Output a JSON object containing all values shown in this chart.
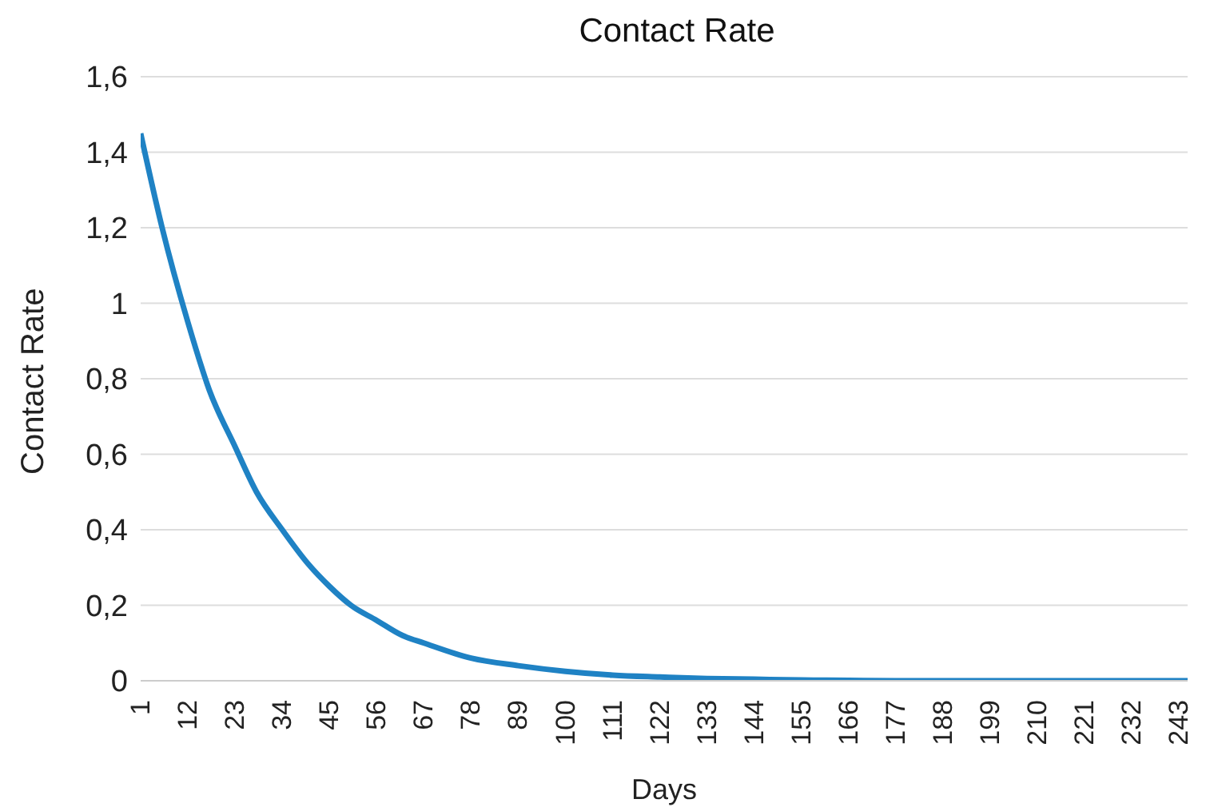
{
  "chart_data": {
    "type": "line",
    "title": "Contact Rate",
    "xlabel": "Days",
    "ylabel": "Contact Rate",
    "x": [
      1,
      6,
      12,
      17,
      23,
      28,
      34,
      40,
      45,
      50,
      56,
      62,
      67,
      78,
      89,
      100,
      111,
      122,
      133,
      144,
      155,
      166,
      177,
      188,
      199,
      210,
      221,
      232,
      243,
      245
    ],
    "series": [
      {
        "color": "#1f82c4",
        "values": [
          1.45,
          1.2,
          0.95,
          0.77,
          0.62,
          0.5,
          0.4,
          0.31,
          0.25,
          0.2,
          0.16,
          0.12,
          0.1,
          0.06,
          0.04,
          0.025,
          0.015,
          0.01,
          0.006,
          0.004,
          0.002,
          0.001,
          0,
          0,
          0,
          0,
          0,
          0,
          0,
          0
        ]
      }
    ],
    "xlim": [
      1,
      245
    ],
    "xticks": [
      1,
      12,
      23,
      34,
      45,
      56,
      67,
      78,
      89,
      100,
      111,
      122,
      133,
      144,
      155,
      166,
      177,
      188,
      199,
      210,
      221,
      232,
      243
    ],
    "ylim": [
      0,
      1.6
    ],
    "yticks": [
      0,
      {
        "value": 0.2,
        "label": "0,2"
      },
      {
        "value": 0.4,
        "label": "0,4"
      },
      {
        "value": 0.6,
        "label": "0,6"
      },
      {
        "value": 0.8,
        "label": "0,8"
      },
      1,
      {
        "value": 1.2,
        "label": "1,2"
      },
      {
        "value": 1.4,
        "label": "1,4"
      },
      {
        "value": 1.6,
        "label": "1,6"
      }
    ],
    "grid": "y",
    "marker": "none",
    "line_style": "solid"
  }
}
